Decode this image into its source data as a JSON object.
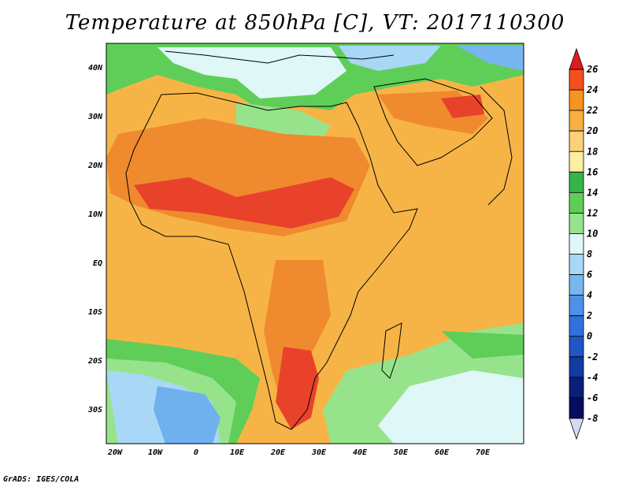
{
  "title": "Temperature at 850hPa [C], VT: 2017110300",
  "footer": "GrADS: IGES/COLA",
  "map": {
    "lat_labels": [
      "40N",
      "30N",
      "20N",
      "10N",
      "EQ",
      "10S",
      "20S",
      "30S"
    ],
    "lon_labels": [
      "20W",
      "10W",
      "0",
      "10E",
      "20E",
      "30E",
      "40E",
      "50E",
      "60E",
      "70E"
    ]
  },
  "colorbar": {
    "levels": [
      "26",
      "24",
      "22",
      "20",
      "18",
      "16",
      "14",
      "12",
      "10",
      "8",
      "6",
      "4",
      "2",
      "0",
      "-2",
      "-4",
      "-6",
      "-8"
    ],
    "colors": [
      "#e31a1c",
      "#f4501d",
      "#f7941d",
      "#f9b040",
      "#fcd07a",
      "#fdeea0",
      "#36b34a",
      "#5fce58",
      "#97e38c",
      "#dff7f7",
      "#a9d7f6",
      "#78b6f0",
      "#4e91e8",
      "#3270de",
      "#1e55c7",
      "#113aa3",
      "#091f7a",
      "#080c5e",
      "#d8d8f6"
    ]
  },
  "colors": {
    "ocean": "#f7b446",
    "sahel": "#f08a2e",
    "hot": "#e8432a",
    "cool_green": "#5fce58",
    "pale": "#dff7f7",
    "blue": "#6fb0ee"
  }
}
